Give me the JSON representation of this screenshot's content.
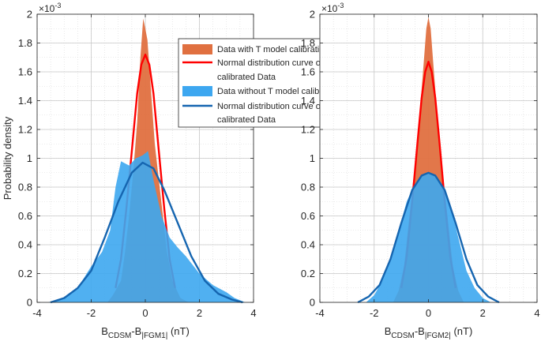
{
  "chart_data": [
    {
      "type": "area",
      "panel": "left",
      "xlabel_main": "B",
      "xlabel_sub1": "CDSM",
      "xlabel_mid": "-B",
      "xlabel_sub2": "|FGM1|",
      "xlabel_unit": " (nT)",
      "ylabel": "Probability density",
      "y_exponent_base": "×10",
      "y_exponent": "-3",
      "xlim": [
        -4,
        4
      ],
      "ylim": [
        0,
        2
      ],
      "xticks": [
        "-4",
        "-2",
        "0",
        "2",
        "4"
      ],
      "yticks": [
        "0",
        "0.2",
        "0.4",
        "0.6",
        "0.8",
        "1",
        "1.2",
        "1.4",
        "1.6",
        "1.8",
        "2"
      ],
      "series": [
        {
          "name": "Data with T model calibration",
          "kind": "area",
          "color": "#E07040",
          "points": [
            [
              -1.4,
              0
            ],
            [
              -1.2,
              0.05
            ],
            [
              -0.9,
              0.15
            ],
            [
              -0.75,
              0.35
            ],
            [
              -0.6,
              0.6
            ],
            [
              -0.45,
              0.9
            ],
            [
              -0.3,
              1.25
            ],
            [
              -0.18,
              1.7
            ],
            [
              -0.08,
              1.97
            ],
            [
              0.0,
              1.9
            ],
            [
              0.08,
              1.82
            ],
            [
              0.2,
              1.5
            ],
            [
              0.35,
              1.1
            ],
            [
              0.5,
              0.85
            ],
            [
              0.65,
              0.6
            ],
            [
              0.8,
              0.35
            ],
            [
              1.0,
              0.15
            ],
            [
              1.3,
              0.03
            ],
            [
              1.6,
              0
            ]
          ]
        },
        {
          "name": "Normal distribution curve of T model calibrated Data",
          "kind": "line",
          "color": "#FF0000",
          "points": [
            [
              -1.1,
              0.1
            ],
            [
              -0.9,
              0.3
            ],
            [
              -0.7,
              0.65
            ],
            [
              -0.5,
              1.05
            ],
            [
              -0.3,
              1.45
            ],
            [
              -0.15,
              1.65
            ],
            [
              0.0,
              1.72
            ],
            [
              0.15,
              1.65
            ],
            [
              0.3,
              1.45
            ],
            [
              0.5,
              1.05
            ],
            [
              0.7,
              0.65
            ],
            [
              0.9,
              0.3
            ],
            [
              1.1,
              0.1
            ]
          ]
        },
        {
          "name": "Data without T model calibration",
          "kind": "area",
          "color": "#3DA7F0",
          "points": [
            [
              -3.6,
              0
            ],
            [
              -3.0,
              0.03
            ],
            [
              -2.5,
              0.1
            ],
            [
              -2.0,
              0.25
            ],
            [
              -1.6,
              0.35
            ],
            [
              -1.3,
              0.5
            ],
            [
              -1.1,
              0.8
            ],
            [
              -0.9,
              0.98
            ],
            [
              -0.6,
              0.95
            ],
            [
              -0.35,
              1.0
            ],
            [
              -0.1,
              1.02
            ],
            [
              0.1,
              1.05
            ],
            [
              0.3,
              0.85
            ],
            [
              0.6,
              0.6
            ],
            [
              0.9,
              0.45
            ],
            [
              1.2,
              0.38
            ],
            [
              1.5,
              0.32
            ],
            [
              2.0,
              0.2
            ],
            [
              2.5,
              0.12
            ],
            [
              3.0,
              0.07
            ],
            [
              3.3,
              0.03
            ],
            [
              3.7,
              0
            ]
          ]
        },
        {
          "name": "Normal distribution curve of linear calibrated Data",
          "kind": "line",
          "color": "#1565B0",
          "points": [
            [
              -3.5,
              0
            ],
            [
              -3.0,
              0.03
            ],
            [
              -2.5,
              0.1
            ],
            [
              -2.0,
              0.22
            ],
            [
              -1.5,
              0.45
            ],
            [
              -1.0,
              0.7
            ],
            [
              -0.5,
              0.9
            ],
            [
              -0.1,
              0.97
            ],
            [
              0.3,
              0.93
            ],
            [
              0.7,
              0.78
            ],
            [
              1.2,
              0.55
            ],
            [
              1.7,
              0.32
            ],
            [
              2.2,
              0.15
            ],
            [
              2.7,
              0.06
            ],
            [
              3.2,
              0.02
            ],
            [
              3.6,
              0
            ]
          ]
        }
      ],
      "legend": {
        "position": "top-right",
        "entries": [
          {
            "label_lines": [
              "Data with T model calibration"
            ],
            "color": "#E07040",
            "style": "patch"
          },
          {
            "label_lines": [
              "Normal distribution curve of T model",
              "calibrated Data"
            ],
            "color": "#FF0000",
            "style": "line"
          },
          {
            "label_lines": [
              "Data without T model calibration"
            ],
            "color": "#3DA7F0",
            "style": "patch"
          },
          {
            "label_lines": [
              "Normal distribution curve of linear",
              "calibrated Data"
            ],
            "color": "#1565B0",
            "style": "line"
          }
        ]
      }
    },
    {
      "type": "area",
      "panel": "right",
      "xlabel_main": "B",
      "xlabel_sub1": "CDSM",
      "xlabel_mid": "-B",
      "xlabel_sub2": "|FGM2|",
      "xlabel_unit": " (nT)",
      "y_exponent_base": "×10",
      "y_exponent": "-3",
      "xlim": [
        -4,
        4
      ],
      "ylim": [
        0,
        2
      ],
      "xticks": [
        "-4",
        "-2",
        "0",
        "2",
        "4"
      ],
      "yticks": [
        "0",
        "0.2",
        "0.4",
        "0.6",
        "0.8",
        "1",
        "1.2",
        "1.4",
        "1.6",
        "1.8",
        "2"
      ],
      "series": [
        {
          "name": "Data with T model calibration",
          "kind": "area",
          "color": "#E07040",
          "points": [
            [
              -1.3,
              0
            ],
            [
              -1.1,
              0.08
            ],
            [
              -0.9,
              0.25
            ],
            [
              -0.7,
              0.6
            ],
            [
              -0.5,
              0.95
            ],
            [
              -0.35,
              1.25
            ],
            [
              -0.2,
              1.6
            ],
            [
              -0.08,
              1.9
            ],
            [
              0.0,
              1.98
            ],
            [
              0.08,
              1.9
            ],
            [
              0.2,
              1.6
            ],
            [
              0.35,
              1.25
            ],
            [
              0.5,
              0.95
            ],
            [
              0.7,
              0.6
            ],
            [
              0.9,
              0.25
            ],
            [
              1.1,
              0.08
            ],
            [
              1.3,
              0
            ]
          ]
        },
        {
          "name": "Normal distribution curve of T model calibrated Data",
          "kind": "line",
          "color": "#FF0000",
          "points": [
            [
              -1.0,
              0.1
            ],
            [
              -0.8,
              0.32
            ],
            [
              -0.6,
              0.7
            ],
            [
              -0.4,
              1.12
            ],
            [
              -0.25,
              1.42
            ],
            [
              -0.12,
              1.6
            ],
            [
              0.0,
              1.67
            ],
            [
              0.12,
              1.6
            ],
            [
              0.25,
              1.42
            ],
            [
              0.4,
              1.12
            ],
            [
              0.6,
              0.7
            ],
            [
              0.8,
              0.32
            ],
            [
              1.0,
              0.1
            ]
          ]
        },
        {
          "name": "Data without T model calibration",
          "kind": "area",
          "color": "#3DA7F0",
          "points": [
            [
              -2.3,
              0
            ],
            [
              -2.0,
              0.05
            ],
            [
              -1.7,
              0.15
            ],
            [
              -1.4,
              0.3
            ],
            [
              -1.1,
              0.5
            ],
            [
              -0.8,
              0.7
            ],
            [
              -0.5,
              0.82
            ],
            [
              -0.2,
              0.88
            ],
            [
              0.0,
              0.9
            ],
            [
              0.2,
              0.88
            ],
            [
              0.5,
              0.82
            ],
            [
              0.8,
              0.68
            ],
            [
              1.1,
              0.45
            ],
            [
              1.4,
              0.22
            ],
            [
              1.7,
              0.1
            ],
            [
              2.0,
              0.03
            ],
            [
              2.3,
              0
            ]
          ]
        },
        {
          "name": "Normal distribution curve of linear calibrated Data",
          "kind": "line",
          "color": "#1565B0",
          "points": [
            [
              -2.6,
              0
            ],
            [
              -2.2,
              0.04
            ],
            [
              -1.8,
              0.12
            ],
            [
              -1.4,
              0.3
            ],
            [
              -1.0,
              0.55
            ],
            [
              -0.6,
              0.78
            ],
            [
              -0.25,
              0.88
            ],
            [
              0.0,
              0.9
            ],
            [
              0.25,
              0.88
            ],
            [
              0.6,
              0.78
            ],
            [
              1.0,
              0.55
            ],
            [
              1.4,
              0.3
            ],
            [
              1.8,
              0.12
            ],
            [
              2.2,
              0.04
            ],
            [
              2.6,
              0
            ]
          ]
        }
      ]
    }
  ]
}
